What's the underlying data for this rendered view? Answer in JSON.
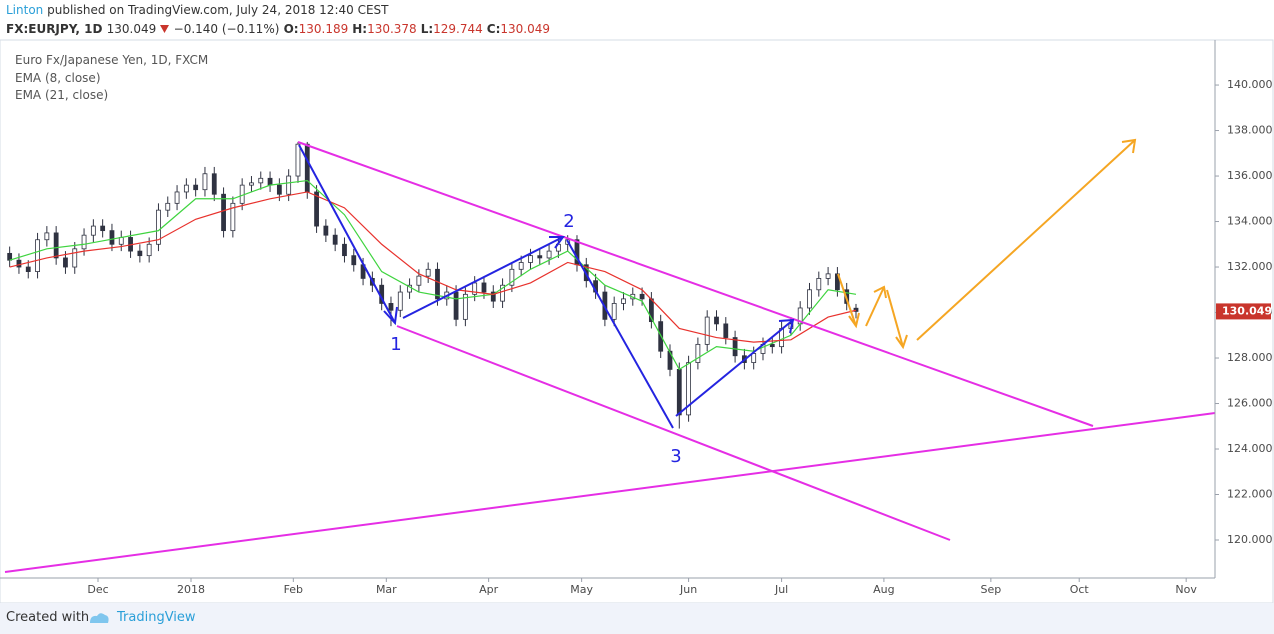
{
  "header": {
    "author": "Linton",
    "published": "published on TradingView.com, July 24, 2018 12:40 CEST",
    "symbol": "FX:EURJPY, 1D",
    "last": "130.049",
    "change": "−0.140 (−0.11%)",
    "ohlc": [
      {
        "label": "O:",
        "value": "130.189"
      },
      {
        "label": "H:",
        "value": "130.378"
      },
      {
        "label": "L:",
        "value": "129.744"
      },
      {
        "label": "C:",
        "value": "130.049"
      }
    ]
  },
  "chart_data": {
    "type": "candlestick",
    "legend_title": "Euro Fx/Japanese Yen, 1D, FXCM",
    "up_color": "#ffffff",
    "down_color": "#2f3241",
    "wick_color": "#2f3241",
    "candles": {
      "x": [
        -19,
        -17,
        -15,
        -13,
        -11,
        -9,
        -7,
        -5,
        -3,
        -1,
        1,
        3,
        5,
        7,
        9,
        11,
        13,
        15,
        17,
        19,
        21,
        23,
        25,
        27,
        29,
        31,
        33,
        35,
        37,
        39,
        41,
        43,
        45,
        47,
        49,
        51,
        53,
        55,
        57,
        59,
        61,
        63,
        65,
        67,
        69,
        71,
        73,
        75,
        77,
        79,
        81,
        83,
        85,
        87,
        89,
        91,
        93,
        95,
        97,
        99,
        101,
        103,
        105,
        107,
        109,
        111,
        113,
        115,
        117,
        119,
        121,
        123,
        125,
        127,
        129,
        131,
        133,
        135,
        137,
        139,
        141,
        143,
        145,
        147,
        149,
        151,
        153,
        155,
        157,
        159,
        161,
        163
      ],
      "open": [
        132.6,
        132.3,
        132.0,
        131.8,
        133.2,
        133.5,
        132.4,
        132.0,
        132.8,
        133.4,
        133.8,
        133.6,
        133.0,
        133.3,
        132.7,
        132.5,
        133.0,
        134.5,
        134.8,
        135.3,
        135.6,
        135.4,
        136.1,
        135.2,
        133.6,
        134.8,
        135.6,
        135.7,
        135.9,
        135.6,
        135.2,
        136.0,
        137.4,
        135.3,
        133.8,
        133.4,
        133.0,
        132.5,
        132.1,
        131.5,
        131.2,
        130.4,
        130.1,
        130.9,
        131.2,
        131.6,
        131.9,
        130.6,
        130.9,
        129.7,
        130.8,
        131.3,
        130.9,
        130.5,
        131.2,
        131.9,
        132.2,
        132.5,
        132.4,
        132.7,
        133.0,
        133.2,
        132.1,
        131.4,
        130.9,
        129.7,
        130.4,
        130.6,
        130.8,
        130.6,
        129.6,
        128.3,
        127.5,
        125.5,
        127.8,
        128.6,
        129.8,
        129.5,
        128.9,
        128.1,
        127.8,
        128.2,
        128.6,
        128.5,
        129.3,
        129.5,
        130.2,
        131.0,
        131.5,
        131.7,
        131.0,
        130.189
      ],
      "high": [
        132.9,
        132.6,
        132.3,
        133.5,
        133.8,
        133.8,
        132.7,
        133.1,
        133.7,
        134.1,
        134.1,
        133.9,
        133.6,
        133.6,
        133.0,
        133.3,
        134.8,
        135.1,
        135.6,
        135.9,
        135.9,
        136.4,
        136.4,
        135.5,
        135.1,
        135.9,
        136.0,
        136.2,
        136.2,
        135.9,
        136.3,
        137.5,
        137.5,
        135.6,
        134.1,
        133.7,
        133.3,
        132.8,
        132.4,
        131.8,
        131.5,
        130.7,
        131.2,
        131.5,
        131.9,
        132.2,
        132.2,
        131.2,
        131.2,
        131.1,
        131.6,
        131.6,
        131.2,
        131.5,
        132.2,
        132.5,
        132.8,
        132.8,
        133.0,
        133.3,
        133.4,
        133.4,
        132.4,
        131.7,
        131.2,
        130.7,
        130.9,
        131.1,
        131.1,
        130.9,
        129.9,
        128.6,
        127.8,
        128.1,
        128.9,
        130.1,
        130.1,
        129.8,
        129.2,
        128.4,
        128.5,
        128.9,
        128.9,
        129.6,
        129.8,
        130.5,
        131.3,
        131.8,
        132.0,
        132.0,
        131.3,
        130.378
      ],
      "low": [
        132.0,
        131.7,
        131.5,
        131.5,
        132.9,
        132.1,
        131.7,
        131.7,
        132.5,
        133.1,
        133.3,
        132.7,
        132.7,
        132.4,
        132.2,
        132.2,
        132.7,
        134.2,
        134.5,
        135.0,
        135.1,
        135.1,
        134.9,
        133.3,
        133.3,
        134.5,
        135.3,
        135.4,
        135.3,
        134.9,
        134.9,
        135.7,
        135.0,
        133.5,
        133.1,
        132.7,
        132.2,
        131.8,
        131.2,
        130.9,
        130.1,
        129.4,
        129.8,
        130.6,
        130.9,
        131.3,
        130.3,
        130.3,
        129.4,
        129.4,
        130.5,
        130.6,
        130.2,
        130.2,
        130.9,
        131.6,
        131.9,
        132.1,
        132.1,
        132.4,
        132.7,
        131.8,
        131.1,
        130.6,
        129.4,
        129.4,
        130.1,
        130.3,
        130.3,
        129.3,
        128.0,
        127.2,
        124.9,
        125.2,
        127.5,
        128.3,
        129.2,
        128.6,
        127.8,
        127.5,
        127.5,
        127.9,
        128.2,
        128.2,
        129.0,
        129.2,
        129.9,
        130.7,
        131.2,
        130.7,
        130.1,
        129.744
      ],
      "close": [
        132.3,
        132.0,
        131.8,
        133.2,
        133.5,
        132.4,
        132.0,
        132.8,
        133.4,
        133.8,
        133.6,
        133.0,
        133.3,
        132.7,
        132.5,
        133.0,
        134.5,
        134.8,
        135.3,
        135.6,
        135.4,
        136.1,
        135.2,
        133.6,
        134.8,
        135.6,
        135.7,
        135.9,
        135.6,
        135.2,
        136.0,
        137.4,
        135.3,
        133.8,
        133.4,
        133.0,
        132.5,
        132.1,
        131.5,
        131.2,
        130.4,
        130.1,
        130.9,
        131.2,
        131.6,
        131.9,
        130.6,
        130.9,
        129.7,
        130.8,
        131.3,
        130.9,
        130.5,
        131.2,
        131.9,
        132.2,
        132.5,
        132.4,
        132.7,
        133.0,
        133.2,
        132.1,
        131.4,
        130.9,
        129.7,
        130.4,
        130.6,
        130.8,
        130.6,
        129.6,
        128.3,
        127.5,
        125.5,
        127.8,
        128.6,
        129.8,
        129.5,
        128.9,
        128.1,
        127.8,
        128.2,
        128.6,
        128.5,
        129.3,
        129.5,
        130.2,
        131.0,
        131.5,
        131.7,
        131.0,
        130.4,
        130.049
      ]
    },
    "series": [
      {
        "name": "EMA (8, close)",
        "color": "#3fd43f",
        "x": [
          -19,
          -11,
          -3,
          5,
          13,
          21,
          29,
          37,
          45,
          53,
          61,
          69,
          77,
          85,
          93,
          101,
          109,
          117,
          125,
          133,
          141,
          149,
          157,
          163
        ],
        "values": [
          132.3,
          132.8,
          133.0,
          133.3,
          133.6,
          135.0,
          135.0,
          135.6,
          135.8,
          134.3,
          131.8,
          130.9,
          130.6,
          130.8,
          131.9,
          132.7,
          131.2,
          130.5,
          127.5,
          128.5,
          128.3,
          129.0,
          131.0,
          130.8
        ]
      },
      {
        "name": "EMA (21, close)",
        "color": "#e8322d",
        "x": [
          -19,
          -11,
          -3,
          5,
          13,
          21,
          29,
          37,
          45,
          53,
          61,
          69,
          77,
          85,
          93,
          101,
          109,
          117,
          125,
          133,
          141,
          149,
          157,
          163
        ],
        "values": [
          132.0,
          132.4,
          132.7,
          132.9,
          133.2,
          134.1,
          134.6,
          135.0,
          135.3,
          134.6,
          133.0,
          131.7,
          131.0,
          130.8,
          131.3,
          132.2,
          131.8,
          131.0,
          129.3,
          128.9,
          128.7,
          128.8,
          129.8,
          130.1
        ]
      }
    ],
    "last_label": "130.049",
    "last_value": 130.049,
    "last_color": "#c9352c",
    "annotations": [
      "1",
      "2",
      "3"
    ],
    "xlim": [
      -20,
      240.2
    ],
    "xticks": [
      {
        "value": 0,
        "label": "Dec"
      },
      {
        "value": 20,
        "label": "2018"
      },
      {
        "value": 42,
        "label": "Feb"
      },
      {
        "value": 62,
        "label": "Mar"
      },
      {
        "value": 84,
        "label": "Apr"
      },
      {
        "value": 104,
        "label": "May"
      },
      {
        "value": 127,
        "label": "Jun"
      },
      {
        "value": 147,
        "label": "Jul"
      },
      {
        "value": 169,
        "label": "Aug"
      },
      {
        "value": 192,
        "label": "Sep"
      },
      {
        "value": 211,
        "label": "Oct"
      },
      {
        "value": 234,
        "label": "Nov"
      }
    ],
    "ylim": [
      118.33,
      141.98
    ],
    "yticks": [
      {
        "value": 120,
        "label": "120.000"
      },
      {
        "value": 122,
        "label": "122.000"
      },
      {
        "value": 124,
        "label": "124.000"
      },
      {
        "value": 126,
        "label": "126.000"
      },
      {
        "value": 128,
        "label": "128.000"
      },
      {
        "value": 130,
        "label": "130.000"
      },
      {
        "value": 132,
        "label": "132.000"
      },
      {
        "value": 134,
        "label": "134.000"
      },
      {
        "value": 136,
        "label": "136.000"
      },
      {
        "value": 138,
        "label": "138.000"
      },
      {
        "value": 140,
        "label": "140.000"
      }
    ]
  },
  "footer": {
    "created": "Created with",
    "brand": "TradingView"
  }
}
